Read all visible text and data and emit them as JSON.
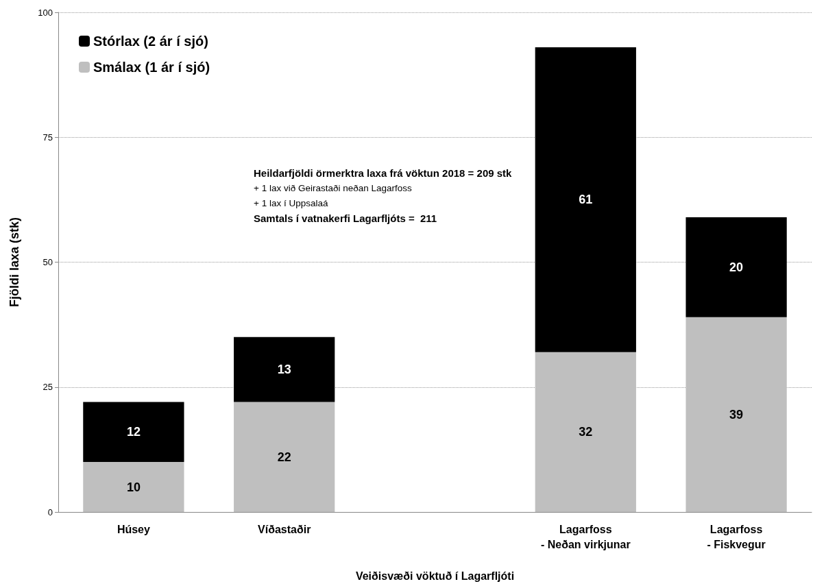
{
  "chart_data": {
    "type": "bar",
    "stacked": true,
    "xlabel": "Veiðisvæði vöktuð í Lagarfljóti",
    "ylabel": "Fjöldi laxa (stk)",
    "categories": [
      "Húsey",
      "Víðastaðir",
      null,
      "Lagarfoss\n- Neðan virkjunar",
      "Lagarfoss\n- Fiskvegur"
    ],
    "series": [
      {
        "name": "Smálax (1 ár í sjó)",
        "color": "#bfbfbf",
        "values": [
          10,
          22,
          null,
          32,
          39
        ]
      },
      {
        "name": "Stórlax (2 ár í sjó)",
        "color": "#000000",
        "values": [
          12,
          13,
          null,
          61,
          20
        ]
      }
    ],
    "ylim": [
      0,
      100
    ],
    "yticks": [
      0,
      25,
      50,
      75,
      100
    ],
    "grid": "y",
    "legend": "top left",
    "data_labels": true,
    "annotations": [
      "Heildarfjöldi örmerktra laxa frá vöktun 2018 = 209 stk",
      "+ 1 lax við Geirastaði neðan Lagarfoss",
      "+ 1 lax í Uppsalaá",
      "Samtals í vatnakerfi Lagarfljóts =  211"
    ]
  }
}
